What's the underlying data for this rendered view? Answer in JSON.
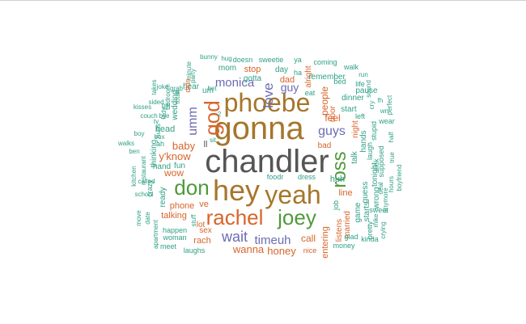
{
  "palette": {
    "gray": "#555555",
    "brown": "#a6762c",
    "green": "#4f9a3b",
    "orange": "#d9642a",
    "purple": "#6c6bb3",
    "teal": "#2f9f86"
  },
  "words": [
    {
      "text": "chandler",
      "color": "gray"
    },
    {
      "text": "gonna",
      "color": "brown"
    },
    {
      "text": "phoebe",
      "color": "brown"
    },
    {
      "text": "hey",
      "color": "brown"
    },
    {
      "text": "yeah",
      "color": "brown"
    },
    {
      "text": "rachel",
      "color": "orange"
    },
    {
      "text": "joey",
      "color": "green"
    },
    {
      "text": "don",
      "color": "green"
    },
    {
      "text": "god",
      "color": "orange"
    },
    {
      "text": "ross",
      "color": "green"
    },
    {
      "text": "monica",
      "color": "purple"
    },
    {
      "text": "wait",
      "color": "purple"
    },
    {
      "text": "guys",
      "color": "purple"
    },
    {
      "text": "love",
      "color": "purple"
    },
    {
      "text": "guy",
      "color": "purple"
    },
    {
      "text": "umm",
      "color": "purple"
    },
    {
      "text": "timeuh",
      "color": "purple"
    },
    {
      "text": "baby",
      "color": "orange"
    },
    {
      "text": "y'know",
      "color": "orange"
    },
    {
      "text": "wow",
      "color": "orange"
    },
    {
      "text": "wanna",
      "color": "orange"
    },
    {
      "text": "honey",
      "color": "orange"
    },
    {
      "text": "people",
      "color": "orange"
    },
    {
      "text": "call",
      "color": "orange"
    },
    {
      "text": "stop",
      "color": "orange"
    },
    {
      "text": "dad",
      "color": "orange"
    },
    {
      "text": "feel",
      "color": "orange"
    },
    {
      "text": "entering",
      "color": "orange"
    },
    {
      "text": "line",
      "color": "orange"
    },
    {
      "text": "phone",
      "color": "orange"
    },
    {
      "text": "talking",
      "color": "orange"
    },
    {
      "text": "rach",
      "color": "orange"
    },
    {
      "text": "sex",
      "color": "orange"
    },
    {
      "text": "bad",
      "color": "orange"
    },
    {
      "text": "ve",
      "color": "orange"
    },
    {
      "text": "lot",
      "color": "orange"
    },
    {
      "text": "alright",
      "color": "orange"
    },
    {
      "text": "door",
      "color": "orange"
    },
    {
      "text": "huh",
      "color": "teal"
    },
    {
      "text": "ll",
      "color": "gray"
    },
    {
      "text": "head",
      "color": "teal"
    },
    {
      "text": "hand",
      "color": "teal"
    },
    {
      "text": "fun",
      "color": "teal"
    },
    {
      "text": "ready",
      "color": "teal"
    },
    {
      "text": "thinking",
      "color": "teal"
    },
    {
      "text": "wedding",
      "color": "teal"
    },
    {
      "text": "hear",
      "color": "teal"
    },
    {
      "text": "um",
      "color": "teal"
    },
    {
      "text": "mom",
      "color": "teal"
    },
    {
      "text": "gotta",
      "color": "teal"
    },
    {
      "text": "day",
      "color": "teal"
    },
    {
      "text": "eat",
      "color": "teal"
    },
    {
      "text": "remember",
      "color": "teal"
    },
    {
      "text": "start",
      "color": "teal"
    },
    {
      "text": "dinner",
      "color": "teal"
    },
    {
      "text": "pause",
      "color": "teal"
    },
    {
      "text": "life",
      "color": "teal"
    },
    {
      "text": "bed",
      "color": "teal"
    },
    {
      "text": "coming",
      "color": "teal"
    },
    {
      "text": "walk",
      "color": "teal"
    },
    {
      "text": "doesn",
      "color": "teal"
    },
    {
      "text": "sweetie",
      "color": "teal"
    },
    {
      "text": "ya",
      "color": "teal"
    },
    {
      "text": "ha",
      "color": "teal"
    },
    {
      "text": "happen",
      "color": "teal"
    },
    {
      "text": "woman",
      "color": "teal"
    },
    {
      "text": "meet",
      "color": "teal"
    },
    {
      "text": "laughs",
      "color": "teal"
    },
    {
      "text": "listens",
      "color": "orange"
    },
    {
      "text": "married",
      "color": "orange"
    },
    {
      "text": "game",
      "color": "teal"
    },
    {
      "text": "starts",
      "color": "teal"
    },
    {
      "text": "wrong",
      "color": "teal"
    },
    {
      "text": "guess",
      "color": "teal"
    },
    {
      "text": "tonight",
      "color": "teal"
    },
    {
      "text": "hands",
      "color": "teal"
    },
    {
      "text": "talk",
      "color": "teal"
    },
    {
      "text": "night",
      "color": "orange"
    },
    {
      "text": "job",
      "color": "teal"
    },
    {
      "text": "pretty",
      "color": "teal"
    },
    {
      "text": "glad",
      "color": "teal"
    },
    {
      "text": "money",
      "color": "teal"
    },
    {
      "text": "kinda",
      "color": "teal"
    },
    {
      "text": "sweet",
      "color": "teal"
    },
    {
      "text": "nice",
      "color": "orange"
    },
    {
      "text": "dress",
      "color": "teal"
    },
    {
      "text": "foodr",
      "color": "teal"
    },
    {
      "text": "kisses",
      "color": "teal"
    },
    {
      "text": "couch",
      "color": "teal"
    },
    {
      "text": "boy",
      "color": "teal"
    },
    {
      "text": "walks",
      "color": "teal"
    },
    {
      "text": "called",
      "color": "teal"
    },
    {
      "text": "school",
      "color": "teal"
    },
    {
      "text": "kitchen",
      "color": "teal"
    },
    {
      "text": "restaurant",
      "color": "teal"
    },
    {
      "text": "crazy",
      "color": "teal"
    },
    {
      "text": "ah",
      "color": "teal"
    },
    {
      "text": "box",
      "color": "teal"
    },
    {
      "text": "apartment",
      "color": "teal"
    },
    {
      "text": "move",
      "color": "teal"
    },
    {
      "text": "date",
      "color": "teal"
    },
    {
      "text": "takes",
      "color": "teal"
    },
    {
      "text": "joke",
      "color": "teal"
    },
    {
      "text": "grab",
      "color": "teal"
    },
    {
      "text": "bedroom",
      "color": "teal"
    },
    {
      "text": "girl",
      "color": "teal"
    },
    {
      "text": "totall",
      "color": "teal"
    },
    {
      "text": "minute",
      "color": "teal"
    },
    {
      "text": "party",
      "color": "teal"
    },
    {
      "text": "bye",
      "color": "teal"
    },
    {
      "text": "hug",
      "color": "teal"
    },
    {
      "text": "bet",
      "color": "teal"
    },
    {
      "text": "sit",
      "color": "teal"
    },
    {
      "text": "stuff",
      "color": "teal"
    },
    {
      "text": "didn",
      "color": "orange"
    },
    {
      "text": "cry",
      "color": "teal"
    },
    {
      "text": "sound",
      "color": "teal"
    },
    {
      "text": "run",
      "color": "teal"
    },
    {
      "text": "perfect",
      "color": "teal"
    },
    {
      "text": "left",
      "color": "teal"
    },
    {
      "text": "stupid",
      "color": "teal"
    },
    {
      "text": "laugh",
      "color": "teal"
    },
    {
      "text": "supposed",
      "color": "teal"
    },
    {
      "text": "wear",
      "color": "teal"
    },
    {
      "text": "half",
      "color": "teal"
    },
    {
      "text": "true",
      "color": "teal"
    },
    {
      "text": "boyfriend",
      "color": "teal"
    },
    {
      "text": "hours",
      "color": "teal"
    },
    {
      "text": "anymore",
      "color": "teal"
    },
    {
      "text": "deal",
      "color": "teal"
    },
    {
      "text": "mike",
      "color": "teal"
    },
    {
      "text": "crying",
      "color": "teal"
    },
    {
      "text": "wn",
      "color": "teal"
    },
    {
      "text": "fh",
      "color": "teal"
    },
    {
      "text": "ben",
      "color": "teal"
    },
    {
      "text": "tv",
      "color": "teal"
    },
    {
      "text": "sided",
      "color": "teal"
    },
    {
      "text": "lady",
      "color": "teal"
    },
    {
      "text": "hurts",
      "color": "teal"
    },
    {
      "text": "bunny",
      "color": "teal"
    },
    {
      "text": "2",
      "color": "teal"
    },
    {
      "text": "sick",
      "color": "teal"
    }
  ]
}
